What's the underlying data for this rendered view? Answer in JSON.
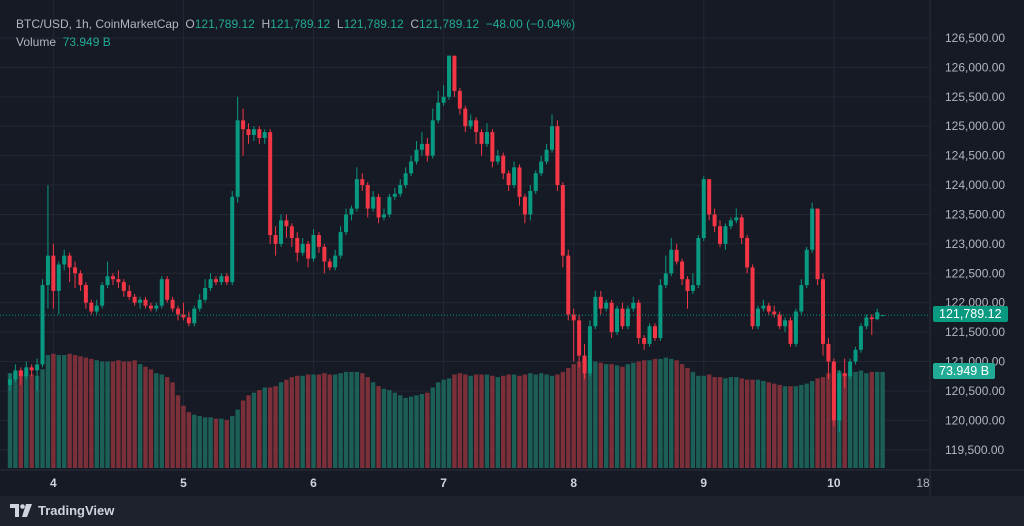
{
  "legend": {
    "symbol": "BTC/USD, 1h, CoinMarketCap",
    "o_label": "O",
    "o_value": "121,789.12",
    "h_label": "H",
    "h_value": "121,789.12",
    "l_label": "L",
    "l_value": "121,789.12",
    "c_label": "C",
    "c_value": "121,789.12",
    "change": "−48.00 (−0.04%)",
    "volume_label": "Volume",
    "volume_value": "73.949 B"
  },
  "price_tag": "121,789.12",
  "volume_tag": "73.949 B",
  "brand": "TradingView",
  "colors": {
    "up": "#089981",
    "down": "#f23645",
    "volume_up": "#1c5f56",
    "volume_down": "#7b2f38",
    "background": "#161a25",
    "grid": "#232733"
  },
  "chart_data": {
    "type": "candlestick",
    "interval": "1h",
    "ylim": [
      119200,
      126800
    ],
    "y_ticks": [
      "126,500.00",
      "126,000.00",
      "125,500.00",
      "125,000.00",
      "124,500.00",
      "124,000.00",
      "123,500.00",
      "123,000.00",
      "122,500.00",
      "122,000.00",
      "121,500.00",
      "121,000.00",
      "120,500.00",
      "120,000.00",
      "119,500.00"
    ],
    "y_tick_values": [
      126500,
      126000,
      125500,
      125000,
      124500,
      124000,
      123500,
      123000,
      122500,
      122000,
      121500,
      121000,
      120500,
      120000,
      119500
    ],
    "x_ticks": [
      {
        "label": "4",
        "candle": 8
      },
      {
        "label": "5",
        "candle": 32
      },
      {
        "label": "6",
        "candle": 56
      },
      {
        "label": "7",
        "candle": 80
      },
      {
        "label": "8",
        "candle": 104
      },
      {
        "label": "9",
        "candle": 128
      },
      {
        "label": "10",
        "candle": 152
      },
      {
        "label": "18:00",
        "candle": 170
      }
    ],
    "last_price": 121789.12,
    "grid": true,
    "candles_ohlc": [
      [
        120600,
        120800,
        120500,
        120700
      ],
      [
        120700,
        120950,
        120650,
        120850
      ],
      [
        120850,
        120900,
        120600,
        120750
      ],
      [
        120750,
        121000,
        120700,
        120900
      ],
      [
        120900,
        120950,
        120750,
        120850
      ],
      [
        120850,
        121050,
        120500,
        120950
      ],
      [
        120950,
        122400,
        120900,
        122300
      ],
      [
        122300,
        124000,
        121900,
        122800
      ],
      [
        122800,
        123000,
        121900,
        122200
      ],
      [
        122200,
        122700,
        121800,
        122650
      ],
      [
        122650,
        122900,
        122550,
        122800
      ],
      [
        122800,
        122850,
        122350,
        122600
      ],
      [
        122600,
        122700,
        122250,
        122500
      ],
      [
        122500,
        122550,
        122200,
        122300
      ],
      [
        122300,
        122350,
        121900,
        122000
      ],
      [
        122000,
        122050,
        121800,
        121850
      ],
      [
        121850,
        122050,
        121800,
        121950
      ],
      [
        121950,
        122350,
        121900,
        122300
      ],
      [
        122300,
        122700,
        122250,
        122450
      ],
      [
        122450,
        122500,
        122300,
        122400
      ],
      [
        122400,
        122550,
        122250,
        122350
      ],
      [
        122350,
        122400,
        122100,
        122200
      ],
      [
        122200,
        122300,
        122050,
        122100
      ],
      [
        122100,
        122150,
        121950,
        122000
      ],
      [
        122000,
        122100,
        121900,
        122050
      ],
      [
        122050,
        122100,
        121900,
        121950
      ],
      [
        121950,
        122000,
        121850,
        121900
      ],
      [
        121900,
        122000,
        121850,
        121950
      ],
      [
        121950,
        122450,
        121900,
        122400
      ],
      [
        122400,
        122450,
        122000,
        122050
      ],
      [
        122050,
        122100,
        121850,
        121900
      ],
      [
        121900,
        121950,
        121700,
        121800
      ],
      [
        121800,
        122000,
        121700,
        121750
      ],
      [
        121750,
        121850,
        121600,
        121650
      ],
      [
        121650,
        121950,
        121600,
        121900
      ],
      [
        121900,
        122150,
        121850,
        122050
      ],
      [
        122050,
        122400,
        122000,
        122250
      ],
      [
        122250,
        122500,
        122200,
        122400
      ],
      [
        122400,
        122450,
        122300,
        122350
      ],
      [
        122350,
        122500,
        122300,
        122450
      ],
      [
        122450,
        122500,
        122300,
        122350
      ],
      [
        122350,
        123900,
        122300,
        123800
      ],
      [
        123800,
        125500,
        123700,
        125100
      ],
      [
        125100,
        125300,
        124500,
        124950
      ],
      [
        124950,
        125050,
        124700,
        124850
      ],
      [
        124850,
        125000,
        124750,
        124950
      ],
      [
        124950,
        125000,
        124700,
        124800
      ],
      [
        124800,
        124950,
        124700,
        124900
      ],
      [
        124900,
        124950,
        123000,
        123150
      ],
      [
        123150,
        123300,
        122800,
        123000
      ],
      [
        123000,
        123500,
        122950,
        123400
      ],
      [
        123400,
        123500,
        123100,
        123300
      ],
      [
        123300,
        123350,
        122950,
        123100
      ],
      [
        123100,
        123200,
        122700,
        122850
      ],
      [
        122850,
        123100,
        122800,
        123000
      ],
      [
        123000,
        123050,
        122600,
        122750
      ],
      [
        122750,
        123250,
        122700,
        123150
      ],
      [
        123150,
        123200,
        122850,
        122950
      ],
      [
        122950,
        123000,
        122500,
        122700
      ],
      [
        122700,
        122750,
        122550,
        122600
      ],
      [
        122600,
        122900,
        122550,
        122800
      ],
      [
        122800,
        123300,
        122750,
        123200
      ],
      [
        123200,
        123600,
        123150,
        123500
      ],
      [
        123500,
        123650,
        123400,
        123600
      ],
      [
        123600,
        124300,
        123550,
        124100
      ],
      [
        124100,
        124200,
        123900,
        124000
      ],
      [
        124000,
        124050,
        123450,
        123600
      ],
      [
        123600,
        123900,
        123550,
        123800
      ],
      [
        123800,
        123850,
        123350,
        123450
      ],
      [
        123450,
        123600,
        123400,
        123500
      ],
      [
        123500,
        123850,
        123450,
        123800
      ],
      [
        123800,
        123950,
        123750,
        123850
      ],
      [
        123850,
        124100,
        123800,
        124000
      ],
      [
        124000,
        124300,
        123950,
        124200
      ],
      [
        124200,
        124500,
        124150,
        124400
      ],
      [
        124400,
        124750,
        124350,
        124600
      ],
      [
        124600,
        124900,
        124500,
        124700
      ],
      [
        124700,
        124800,
        124400,
        124500
      ],
      [
        124500,
        125300,
        124450,
        125100
      ],
      [
        125100,
        125600,
        125050,
        125400
      ],
      [
        125400,
        125700,
        125350,
        125500
      ],
      [
        125500,
        126200,
        125450,
        126200
      ],
      [
        126200,
        126200,
        125500,
        125600
      ],
      [
        125600,
        125650,
        125200,
        125300
      ],
      [
        125300,
        125350,
        124900,
        125000
      ],
      [
        125000,
        125200,
        124950,
        125100
      ],
      [
        125100,
        125150,
        124700,
        124900
      ],
      [
        124900,
        124950,
        124500,
        124700
      ],
      [
        124700,
        125050,
        124650,
        124900
      ],
      [
        124900,
        124950,
        124300,
        124400
      ],
      [
        124400,
        124600,
        124350,
        124500
      ],
      [
        124500,
        124550,
        124100,
        124200
      ],
      [
        124200,
        124250,
        123900,
        124000
      ],
      [
        124000,
        124400,
        123950,
        124300
      ],
      [
        124300,
        124350,
        123650,
        123800
      ],
      [
        123800,
        123850,
        123350,
        123500
      ],
      [
        123500,
        124000,
        123400,
        123900
      ],
      [
        123900,
        124250,
        123850,
        124200
      ],
      [
        124200,
        124500,
        124150,
        124400
      ],
      [
        124400,
        124700,
        124350,
        124600
      ],
      [
        124600,
        125200,
        124550,
        125000
      ],
      [
        125000,
        125100,
        123900,
        124000
      ],
      [
        124000,
        124050,
        122600,
        122800
      ],
      [
        122800,
        122900,
        121700,
        121800
      ],
      [
        121800,
        121900,
        121000,
        121700
      ],
      [
        121700,
        121800,
        120900,
        121100
      ],
      [
        121100,
        121300,
        120700,
        120800
      ],
      [
        120800,
        121700,
        120750,
        121600
      ],
      [
        121600,
        122200,
        121550,
        122100
      ],
      [
        122100,
        122200,
        121800,
        121900
      ],
      [
        121900,
        122050,
        121850,
        122000
      ],
      [
        122000,
        122050,
        121400,
        121500
      ],
      [
        121500,
        121950,
        121450,
        121900
      ],
      [
        121900,
        122000,
        121550,
        121600
      ],
      [
        121600,
        121950,
        121550,
        121900
      ],
      [
        121900,
        122100,
        121850,
        122000
      ],
      [
        122000,
        122050,
        121300,
        121400
      ],
      [
        121400,
        121450,
        121200,
        121300
      ],
      [
        121300,
        121650,
        121250,
        121600
      ],
      [
        121600,
        121650,
        121350,
        121400
      ],
      [
        121400,
        122400,
        121350,
        122300
      ],
      [
        122300,
        122800,
        122250,
        122500
      ],
      [
        122500,
        123100,
        122450,
        122900
      ],
      [
        122900,
        123000,
        122650,
        122700
      ],
      [
        122700,
        122750,
        122300,
        122400
      ],
      [
        122400,
        122450,
        121900,
        122200
      ],
      [
        122200,
        122500,
        122150,
        122300
      ],
      [
        122300,
        123150,
        122250,
        123100
      ],
      [
        123100,
        124150,
        123050,
        124100
      ],
      [
        124100,
        124100,
        123400,
        123500
      ],
      [
        123500,
        123600,
        123200,
        123300
      ],
      [
        123300,
        123400,
        122950,
        123000
      ],
      [
        123000,
        123350,
        122900,
        123300
      ],
      [
        123300,
        123450,
        123250,
        123400
      ],
      [
        123400,
        123600,
        123350,
        123450
      ],
      [
        123450,
        123500,
        123000,
        123100
      ],
      [
        123100,
        123150,
        122500,
        122600
      ],
      [
        122600,
        122650,
        121550,
        121600
      ],
      [
        121600,
        121950,
        121550,
        121900
      ],
      [
        121900,
        122050,
        121850,
        121950
      ],
      [
        121950,
        122000,
        121800,
        121850
      ],
      [
        121850,
        121950,
        121750,
        121800
      ],
      [
        121800,
        121850,
        121550,
        121600
      ],
      [
        121600,
        121750,
        121500,
        121700
      ],
      [
        121700,
        121750,
        121250,
        121300
      ],
      [
        121300,
        121900,
        121250,
        121850
      ],
      [
        121850,
        122400,
        121800,
        122300
      ],
      [
        122300,
        122950,
        122250,
        122900
      ],
      [
        122900,
        123700,
        122850,
        123600
      ],
      [
        123600,
        123600,
        122300,
        122400
      ],
      [
        122400,
        122500,
        121100,
        121300
      ],
      [
        121300,
        121400,
        120700,
        121000
      ],
      [
        121000,
        121050,
        119900,
        120000
      ],
      [
        120000,
        120850,
        119800,
        120800
      ],
      [
        120800,
        121050,
        120550,
        120750
      ],
      [
        120750,
        121050,
        120700,
        121000
      ],
      [
        121000,
        121250,
        120950,
        121200
      ],
      [
        121200,
        121650,
        121150,
        121600
      ],
      [
        121600,
        121800,
        121550,
        121750
      ],
      [
        121750,
        121800,
        121450,
        121720
      ],
      [
        121720,
        121900,
        121700,
        121837.12
      ],
      [
        121789.12,
        121789.12,
        121789.12,
        121789.12
      ]
    ],
    "volume_billions": [
      73,
      74,
      75,
      73,
      72,
      71,
      76,
      87,
      88,
      87,
      87,
      88,
      87,
      86,
      85,
      84,
      83,
      82,
      82,
      82,
      83,
      82,
      82,
      83,
      80,
      78,
      76,
      73,
      72,
      70,
      66,
      56,
      48,
      43,
      41,
      40,
      39,
      39,
      38,
      38,
      37,
      40,
      45,
      52,
      56,
      58,
      60,
      62,
      62,
      63,
      66,
      68,
      70,
      71,
      71,
      72,
      72,
      72,
      73,
      72,
      72,
      73,
      74,
      74,
      74,
      73,
      70,
      66,
      63,
      61,
      60,
      58,
      56,
      54,
      55,
      56,
      57,
      58,
      62,
      66,
      68,
      69,
      72,
      73,
      72,
      71,
      72,
      72,
      72,
      71,
      70,
      71,
      72,
      72,
      71,
      72,
      73,
      72,
      73,
      72,
      71,
      72,
      74,
      77,
      80,
      82,
      84,
      82,
      82,
      81,
      80,
      80,
      79,
      78,
      80,
      81,
      82,
      83,
      83,
      84,
      84,
      85,
      84,
      83,
      80,
      77,
      74,
      71,
      71,
      72,
      70,
      70,
      69,
      70,
      70,
      69,
      68,
      68,
      68,
      67,
      66,
      65,
      64,
      63,
      63,
      63,
      64,
      65,
      67,
      69,
      70,
      73,
      78,
      75,
      73,
      74,
      74,
      75,
      73,
      74,
      74,
      73.949
    ]
  }
}
